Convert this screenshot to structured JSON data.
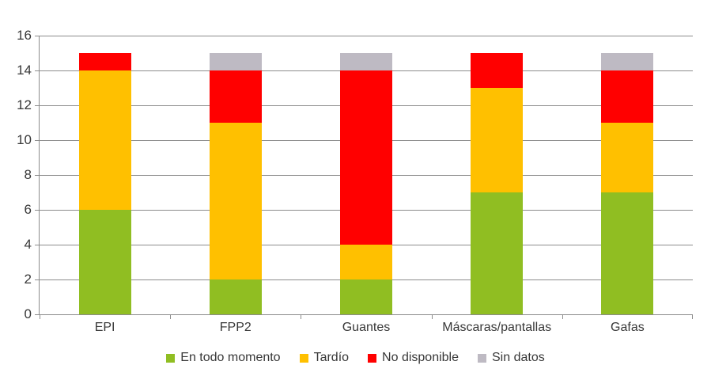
{
  "chart_data": {
    "type": "bar",
    "subtype": "stacked",
    "title": "",
    "categories": [
      "EPI",
      "FPP2",
      "Guantes",
      "Máscaras/pantallas",
      "Gafas"
    ],
    "series": [
      {
        "name": "En todo momento",
        "color": "#90BE22",
        "values": [
          6,
          2,
          2,
          7,
          7
        ]
      },
      {
        "name": "Tardío",
        "color": "#FFC000",
        "values": [
          8,
          9,
          2,
          6,
          4
        ]
      },
      {
        "name": "No disponible",
        "color": "#FF0000",
        "values": [
          1,
          3,
          10,
          2,
          3
        ]
      },
      {
        "name": "Sin datos",
        "color": "#BEBAC3",
        "values": [
          0,
          1,
          1,
          0,
          1
        ]
      }
    ],
    "totals": [
      15,
      15,
      15,
      15,
      15
    ],
    "xlabel": "",
    "ylabel": "",
    "ylim": [
      0,
      16
    ],
    "yticks": [
      0,
      2,
      4,
      6,
      8,
      10,
      12,
      14,
      16
    ],
    "grid": true,
    "legend_position": "bottom",
    "axis_color": "#8C8C8C",
    "text_color": "#383838",
    "background": "#FFFFFF"
  }
}
